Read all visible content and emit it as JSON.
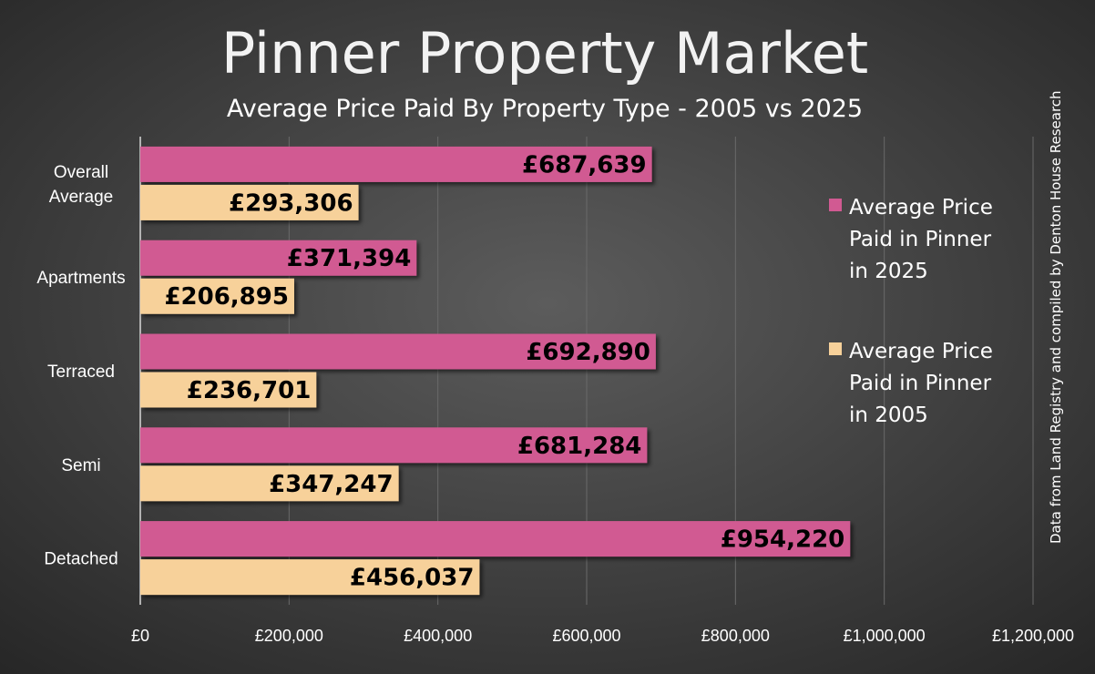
{
  "chart_data": {
    "type": "bar",
    "orientation": "horizontal",
    "title": "Pinner Property Market",
    "subtitle": "Average Price Paid By Property Type - 2005 vs 2025",
    "categories": [
      [
        "Overall",
        "Average"
      ],
      [
        "Apartments"
      ],
      [
        "Terraced"
      ],
      [
        "Semi"
      ],
      [
        "Detached"
      ]
    ],
    "series": [
      {
        "name": "Average Price Paid in Pinner in 2025",
        "legend_lines": [
          "Average Price",
          "Paid in Pinner",
          "in 2025"
        ],
        "values": [
          687639,
          371394,
          692890,
          681284,
          954220
        ],
        "labels": [
          "£687,639",
          "£371,394",
          "£692,890",
          "£681,284",
          "£954,220"
        ],
        "color": "#d15a92"
      },
      {
        "name": "Average Price Paid in Pinner in 2005",
        "legend_lines": [
          "Average Price",
          "Paid in Pinner",
          "in 2005"
        ],
        "values": [
          293306,
          206895,
          236701,
          347247,
          456037
        ],
        "labels": [
          "£293,306",
          "£206,895",
          "£236,701",
          "£347,247",
          "£456,037"
        ],
        "color": "#f7d19a"
      }
    ],
    "x_ticks": [
      {
        "value": 0,
        "label": "£0"
      },
      {
        "value": 200000,
        "label": "£200,000"
      },
      {
        "value": 400000,
        "label": "£400,000"
      },
      {
        "value": 600000,
        "label": "£600,000"
      },
      {
        "value": 800000,
        "label": "£800,000"
      },
      {
        "value": 1000000,
        "label": "£1,000,000"
      },
      {
        "value": 1200000,
        "label": "£1,200,000"
      }
    ],
    "xlim": [
      0,
      1200000
    ],
    "grid": true,
    "legend_position": "right",
    "source_note": "Data from Land Registry and compiled by Denton House Research",
    "colors": {
      "background": "#3c3c3c",
      "grid": "#6a6a6a",
      "axis": "#d9d9d9",
      "text": "#ffffff"
    }
  }
}
